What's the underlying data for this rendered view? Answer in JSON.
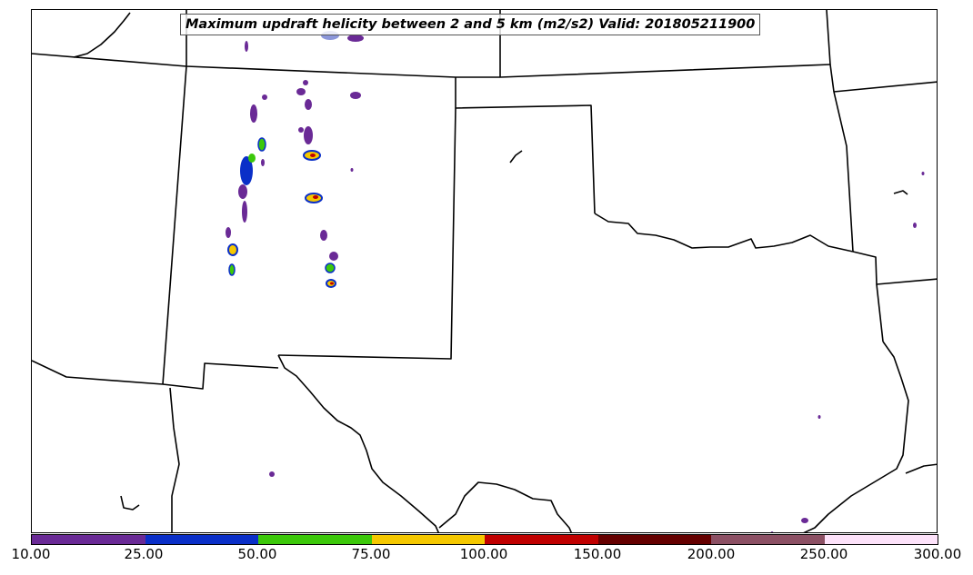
{
  "title": "Maximum updraft helicity between 2 and 5 km (m2/s2) Valid: 201805211900",
  "colorbar": {
    "ticks": [
      "10.00",
      "25.00",
      "50.00",
      "75.00",
      "100.00",
      "150.00",
      "200.00",
      "250.00",
      "300.00"
    ],
    "colors": [
      "#6a2a96",
      "#0a2fc8",
      "#3cc80a",
      "#f5c800",
      "#c00000",
      "#650000",
      "#8c5064",
      "#fde2fa"
    ]
  },
  "map": {
    "region": "Southern Plains / Texas - Oklahoma - New Mexico",
    "outline_color": "#000000",
    "cells": [
      {
        "level": 25,
        "color": "#5a6acb"
      },
      {
        "level": 10,
        "color": "#6a2a96"
      },
      {
        "level": 25,
        "color": "#0a2fc8"
      },
      {
        "level": 50,
        "color": "#3cc80a"
      },
      {
        "level": 75,
        "color": "#f5c800"
      },
      {
        "level": 100,
        "color": "#c00000"
      }
    ]
  }
}
